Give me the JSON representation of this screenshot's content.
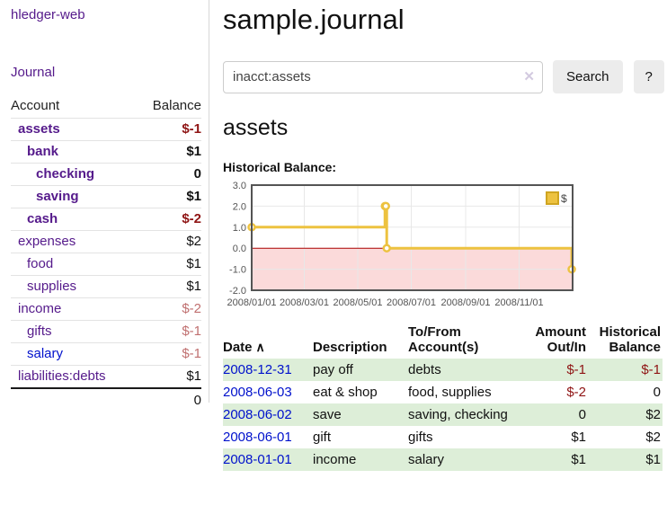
{
  "colors": {
    "link_purple": "#551a8b",
    "link_blue": "#0011cc",
    "negative_strong": "#8f1414",
    "negative_faded": "#c07070",
    "row_stripe_green": "#ddeed8",
    "chart_series_gold": "#edc240"
  },
  "sidebar": {
    "app_title": "hledger-web",
    "journal_label": "Journal",
    "accounts_table": {
      "headers": {
        "account": "Account",
        "balance": "Balance"
      },
      "rows": [
        {
          "name": "assets",
          "depth": 0,
          "bold": true,
          "name_class": "purple",
          "balance": "$-1",
          "balance_class": "neg-strong"
        },
        {
          "name": "bank",
          "depth": 1,
          "bold": true,
          "name_class": "purple",
          "balance": "$1",
          "balance_class": "num"
        },
        {
          "name": "checking",
          "depth": 2,
          "bold": true,
          "name_class": "purple",
          "balance": "0",
          "balance_class": "num"
        },
        {
          "name": "saving",
          "depth": 2,
          "bold": true,
          "name_class": "purple",
          "balance": "$1",
          "balance_class": "num"
        },
        {
          "name": "cash",
          "depth": 1,
          "bold": true,
          "name_class": "purple",
          "balance": "$-2",
          "balance_class": "neg-strong"
        },
        {
          "name": "expenses",
          "depth": 0,
          "bold": false,
          "name_class": "purple",
          "balance": "$2",
          "balance_class": "num"
        },
        {
          "name": "food",
          "depth": 1,
          "bold": false,
          "name_class": "purple",
          "balance": "$1",
          "balance_class": "num"
        },
        {
          "name": "supplies",
          "depth": 1,
          "bold": false,
          "name_class": "purple",
          "balance": "$1",
          "balance_class": "num"
        },
        {
          "name": "income",
          "depth": 0,
          "bold": false,
          "name_class": "purple",
          "balance": "$-2",
          "balance_class": "neg-faded"
        },
        {
          "name": "gifts",
          "depth": 1,
          "bold": false,
          "name_class": "purple",
          "balance": "$-1",
          "balance_class": "neg-faded"
        },
        {
          "name": "salary",
          "depth": 1,
          "bold": false,
          "name_class": "blue",
          "balance": "$-1",
          "balance_class": "neg-faded"
        },
        {
          "name": "liabilities:debts",
          "depth": 0,
          "bold": false,
          "name_class": "purple",
          "balance": "$1",
          "balance_class": "num"
        }
      ],
      "total_balance": "0"
    }
  },
  "main": {
    "page_title": "sample.journal",
    "search": {
      "value": "inacct:assets",
      "clear_icon": "✕",
      "search_button_label": "Search",
      "help_button_label": "?"
    },
    "account_heading": "assets",
    "chart_label": "Historical Balance:"
  },
  "chart_data": {
    "type": "line",
    "step": true,
    "title": "Historical Balance",
    "series": [
      {
        "name": "$",
        "color": "#edc240",
        "points": [
          {
            "date": "2008/01/01",
            "day": 0,
            "value": 1
          },
          {
            "date": "2008/06/01",
            "day": 152,
            "value": 2
          },
          {
            "date": "2008/06/02",
            "day": 153,
            "value": 2
          },
          {
            "date": "2008/06/03",
            "day": 154,
            "value": 0
          },
          {
            "date": "2008/12/31",
            "day": 365,
            "value": -1
          }
        ]
      }
    ],
    "xlim": [
      0,
      366
    ],
    "ylim": [
      -2,
      3
    ],
    "x_ticks": [
      {
        "pos": 0,
        "label": "2008/01/01"
      },
      {
        "pos": 60,
        "label": "2008/03/01"
      },
      {
        "pos": 121,
        "label": "2008/05/01"
      },
      {
        "pos": 182,
        "label": "2008/07/01"
      },
      {
        "pos": 244,
        "label": "2008/09/01"
      },
      {
        "pos": 305,
        "label": "2008/11/01"
      }
    ],
    "y_ticks": [
      {
        "pos": 3,
        "label": "3.0"
      },
      {
        "pos": 2,
        "label": "2.0"
      },
      {
        "pos": 1,
        "label": "1.0"
      },
      {
        "pos": 0,
        "label": "0.0"
      },
      {
        "pos": -1,
        "label": "-1.0"
      },
      {
        "pos": -2,
        "label": "-2.0"
      }
    ],
    "grid_on": true,
    "grid_color": "#e8e8e8",
    "border_color": "#545454",
    "zero_line_color": "#aa0000",
    "negative_region_fill": "#fbdada",
    "legend": {
      "position": "top-right",
      "label": "$",
      "swatch_color": "#edc240",
      "swatch_border": "#cfa521"
    }
  },
  "register_table": {
    "headers": {
      "date": "Date",
      "sort_icon": "∧",
      "description": "Description",
      "accounts": "To/From Account(s)",
      "amount": "Amount Out/In",
      "balance": "Historical Balance"
    },
    "rows": [
      {
        "date": "2008-12-31",
        "description": "pay off",
        "accounts": "debts",
        "amount": "$-1",
        "amount_class": "neg-strong",
        "balance": "$-1",
        "balance_class": "neg-strong",
        "striped": true
      },
      {
        "date": "2008-06-03",
        "description": "eat & shop",
        "accounts": "food, supplies",
        "amount": "$-2",
        "amount_class": "neg-strong",
        "balance": "0",
        "balance_class": "num",
        "striped": false
      },
      {
        "date": "2008-06-02",
        "description": "save",
        "accounts": "saving, checking",
        "amount": "0",
        "amount_class": "num",
        "balance": "$2",
        "balance_class": "num",
        "striped": true
      },
      {
        "date": "2008-06-01",
        "description": "gift",
        "accounts": "gifts",
        "amount": "$1",
        "amount_class": "num",
        "balance": "$2",
        "balance_class": "num",
        "striped": false
      },
      {
        "date": "2008-01-01",
        "description": "income",
        "accounts": "salary",
        "amount": "$1",
        "amount_class": "num",
        "balance": "$1",
        "balance_class": "num",
        "striped": true
      }
    ]
  }
}
